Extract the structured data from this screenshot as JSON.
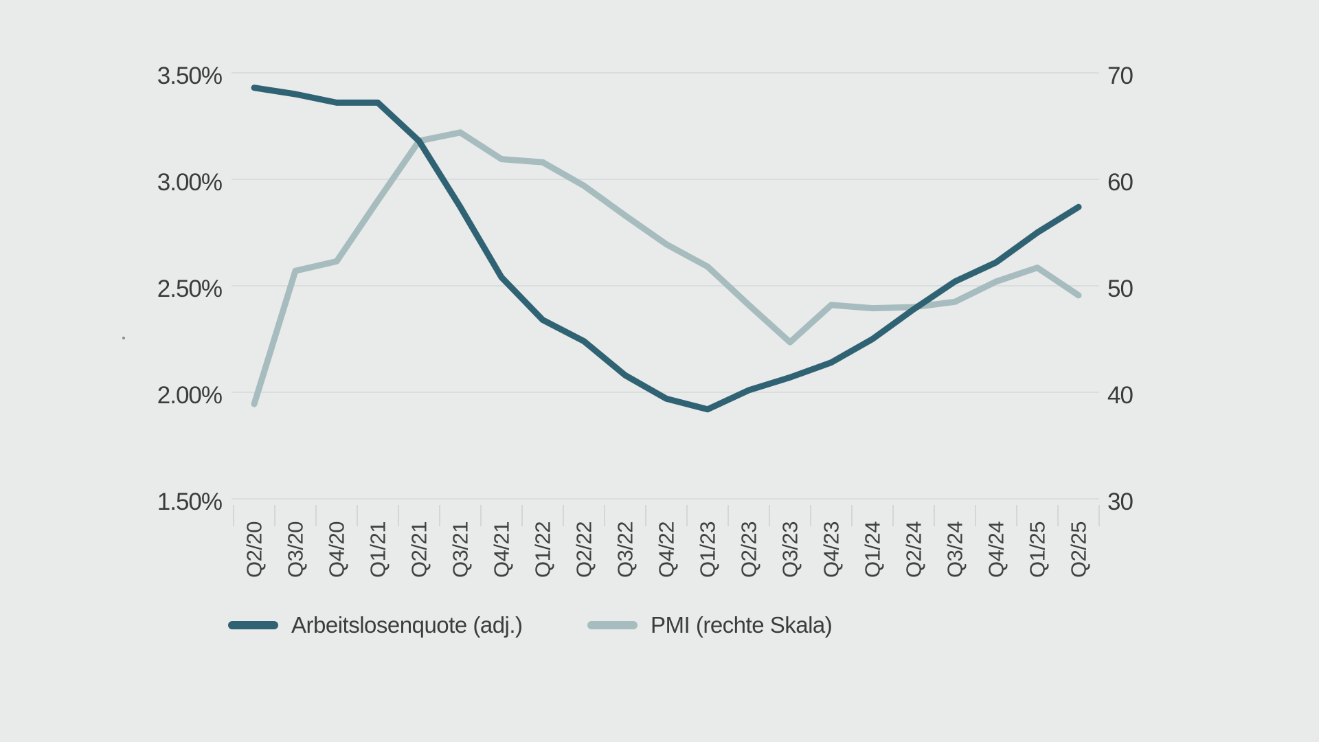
{
  "colors": {
    "background": "#e9eaea",
    "grid": "#d9dddd",
    "axis_tick_mark": "#d3d7d7",
    "text": "#3b3b3b",
    "series_dark": "#2f6373",
    "series_light": "#a6bcbe"
  },
  "chart_data": {
    "type": "line",
    "categories": [
      "Q2/20",
      "Q3/20",
      "Q4/20",
      "Q1/21",
      "Q2/21",
      "Q3/21",
      "Q4/21",
      "Q1/22",
      "Q2/22",
      "Q3/22",
      "Q4/22",
      "Q1/23",
      "Q2/23",
      "Q3/23",
      "Q4/23",
      "Q1/24",
      "Q2/24",
      "Q3/24",
      "Q4/24",
      "Q1/25",
      "Q2/25"
    ],
    "series": [
      {
        "name": "Arbeitslosenquote (adj.)",
        "axis": "left",
        "color": "#2f6373",
        "values": [
          3.43,
          3.4,
          3.36,
          3.36,
          3.18,
          2.87,
          2.54,
          2.34,
          2.24,
          2.08,
          1.97,
          1.92,
          2.01,
          2.07,
          2.14,
          2.25,
          2.39,
          2.52,
          2.61,
          2.75,
          2.87
        ]
      },
      {
        "name": "PMI (rechte Skala)",
        "axis": "right",
        "color": "#a6bcbe",
        "values": [
          38.9,
          51.4,
          52.3,
          58.0,
          63.6,
          64.4,
          61.9,
          61.6,
          59.4,
          56.6,
          53.9,
          51.8,
          48.2,
          44.7,
          48.2,
          47.9,
          48.0,
          48.5,
          50.4,
          51.7,
          49.1
        ]
      }
    ],
    "left_axis": {
      "tick_labels": [
        "3.50%",
        "3.00%",
        "2.50%",
        "2.00%",
        "1.50%"
      ],
      "tick_values": [
        3.5,
        3.0,
        2.5,
        2.0,
        1.5
      ],
      "min": 1.5,
      "max": 3.5
    },
    "right_axis": {
      "tick_labels": [
        "70",
        "60",
        "50",
        "40",
        "30"
      ],
      "tick_values": [
        70,
        60,
        50,
        40,
        30
      ],
      "min": 30,
      "max": 70
    },
    "grid": true,
    "legend_position": "bottom",
    "title": ""
  },
  "legend": {
    "items": [
      {
        "label": "Arbeitslosenquote (adj.)",
        "color": "#2f6373"
      },
      {
        "label": "PMI (rechte Skala)",
        "color": "#a6bcbe"
      }
    ]
  }
}
